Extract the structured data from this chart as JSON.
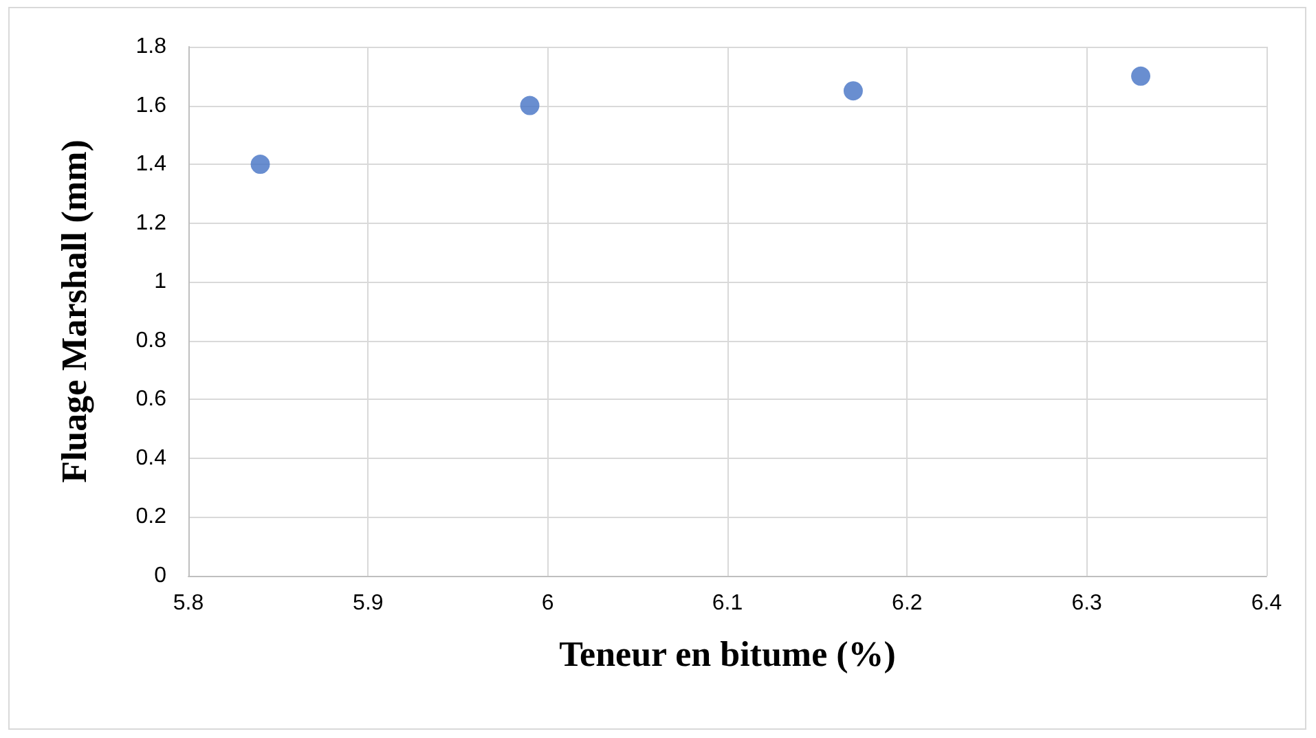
{
  "chart_data": {
    "type": "scatter",
    "xlabel": "Teneur en bitume (%)",
    "ylabel": "Fluage Marshall (mm)",
    "x": [
      5.84,
      5.99,
      6.17,
      6.33
    ],
    "series": [
      {
        "color": "#4472c4",
        "values": [
          1.4,
          1.6,
          1.65,
          1.7
        ]
      }
    ],
    "xlim": [
      5.8,
      6.4
    ],
    "xticks": [
      5.8,
      5.9,
      6,
      6.1,
      6.2,
      6.3,
      6.4
    ],
    "ylim": [
      0,
      1.8
    ],
    "yticks": [
      0,
      0.2,
      0.4,
      0.6,
      0.8,
      1,
      1.2,
      1.4,
      1.6,
      1.8
    ],
    "grid": true,
    "marker": "circle"
  }
}
